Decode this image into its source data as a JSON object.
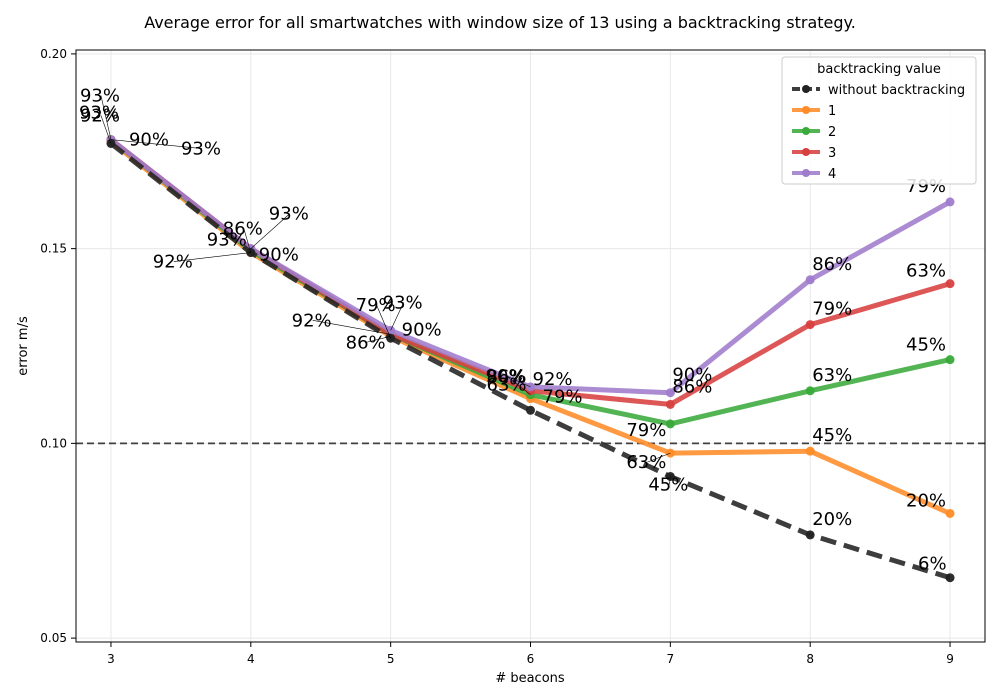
{
  "chart_data": {
    "type": "line",
    "title": "Average error for all smartwatches with window size of 13 using a backtracking strategy.",
    "xlabel": "# beacons",
    "ylabel": "error m/s",
    "x": [
      3,
      4,
      5,
      6,
      7,
      8,
      9
    ],
    "xlim": [
      2.75,
      9.25
    ],
    "ylim": [
      0.049,
      0.201
    ],
    "x_ticks": [
      "3",
      "4",
      "5",
      "6",
      "7",
      "8",
      "9"
    ],
    "y_ticks": [
      {
        "value": 0.05,
        "label": "0.05"
      },
      {
        "value": 0.1,
        "label": "0.10"
      },
      {
        "value": 0.15,
        "label": "0.15"
      },
      {
        "value": 0.2,
        "label": "0.20"
      }
    ],
    "grid": true,
    "reference_line": {
      "value": 0.1,
      "style": "dashed",
      "color": "#404040"
    },
    "legend": {
      "title": "backtracking value",
      "placement": "top-right"
    },
    "series": [
      {
        "name": "without backtracking",
        "color": "#222222",
        "dashed": true,
        "values": [
          0.177,
          0.149,
          0.127,
          0.1085,
          0.0915,
          0.0765,
          0.0655
        ],
        "labels": [
          {
            "x": 3,
            "text": "92%"
          },
          {
            "x": 4,
            "text": "86%"
          },
          {
            "x": 5,
            "text": "79%"
          },
          {
            "x": 6,
            "text": "63%"
          },
          {
            "x": 7,
            "text": "45%"
          },
          {
            "x": 8,
            "text": "20%"
          },
          {
            "x": 9,
            "text": "6%"
          }
        ]
      },
      {
        "name": "1",
        "color": "#ff8c28",
        "dashed": false,
        "values": [
          0.1775,
          0.149,
          0.1275,
          0.1115,
          0.0975,
          0.098,
          0.082
        ],
        "labels": [
          {
            "x": 3,
            "text": "90%"
          },
          {
            "x": 4,
            "text": "92%"
          },
          {
            "x": 5,
            "text": "86%"
          },
          {
            "x": 6,
            "text": "79%"
          },
          {
            "x": 7,
            "text": "63%"
          },
          {
            "x": 8,
            "text": "45%"
          },
          {
            "x": 9,
            "text": "20%"
          }
        ]
      },
      {
        "name": "2",
        "color": "#3aaa3a",
        "dashed": false,
        "values": [
          0.178,
          0.1495,
          0.128,
          0.1125,
          0.105,
          0.1135,
          0.1215
        ],
        "labels": [
          {
            "x": 3,
            "text": "93%"
          },
          {
            "x": 4,
            "text": "93%"
          },
          {
            "x": 5,
            "text": "92%"
          },
          {
            "x": 6,
            "text": "86%"
          },
          {
            "x": 7,
            "text": "79%"
          },
          {
            "x": 8,
            "text": "63%"
          },
          {
            "x": 9,
            "text": "45%"
          }
        ]
      },
      {
        "name": "3",
        "color": "#d84040",
        "dashed": false,
        "values": [
          0.178,
          0.15,
          0.128,
          0.1135,
          0.11,
          0.1305,
          0.141
        ],
        "labels": [
          {
            "x": 3,
            "text": "93%"
          },
          {
            "x": 4,
            "text": "90%"
          },
          {
            "x": 5,
            "text": "90%"
          },
          {
            "x": 6,
            "text": "92%"
          },
          {
            "x": 7,
            "text": "86%"
          },
          {
            "x": 8,
            "text": "79%"
          },
          {
            "x": 9,
            "text": "63%"
          }
        ]
      },
      {
        "name": "4",
        "color": "#9f7ccc",
        "dashed": false,
        "values": [
          0.178,
          0.15,
          0.129,
          0.1145,
          0.113,
          0.142,
          0.162
        ],
        "labels": [
          {
            "x": 3,
            "text": "93%"
          },
          {
            "x": 4,
            "text": "93%"
          },
          {
            "x": 5,
            "text": "93%"
          },
          {
            "x": 6,
            "text": "90%"
          },
          {
            "x": 7,
            "text": "90%"
          },
          {
            "x": 8,
            "text": "86%"
          },
          {
            "x": 9,
            "text": "79%"
          }
        ]
      }
    ]
  }
}
